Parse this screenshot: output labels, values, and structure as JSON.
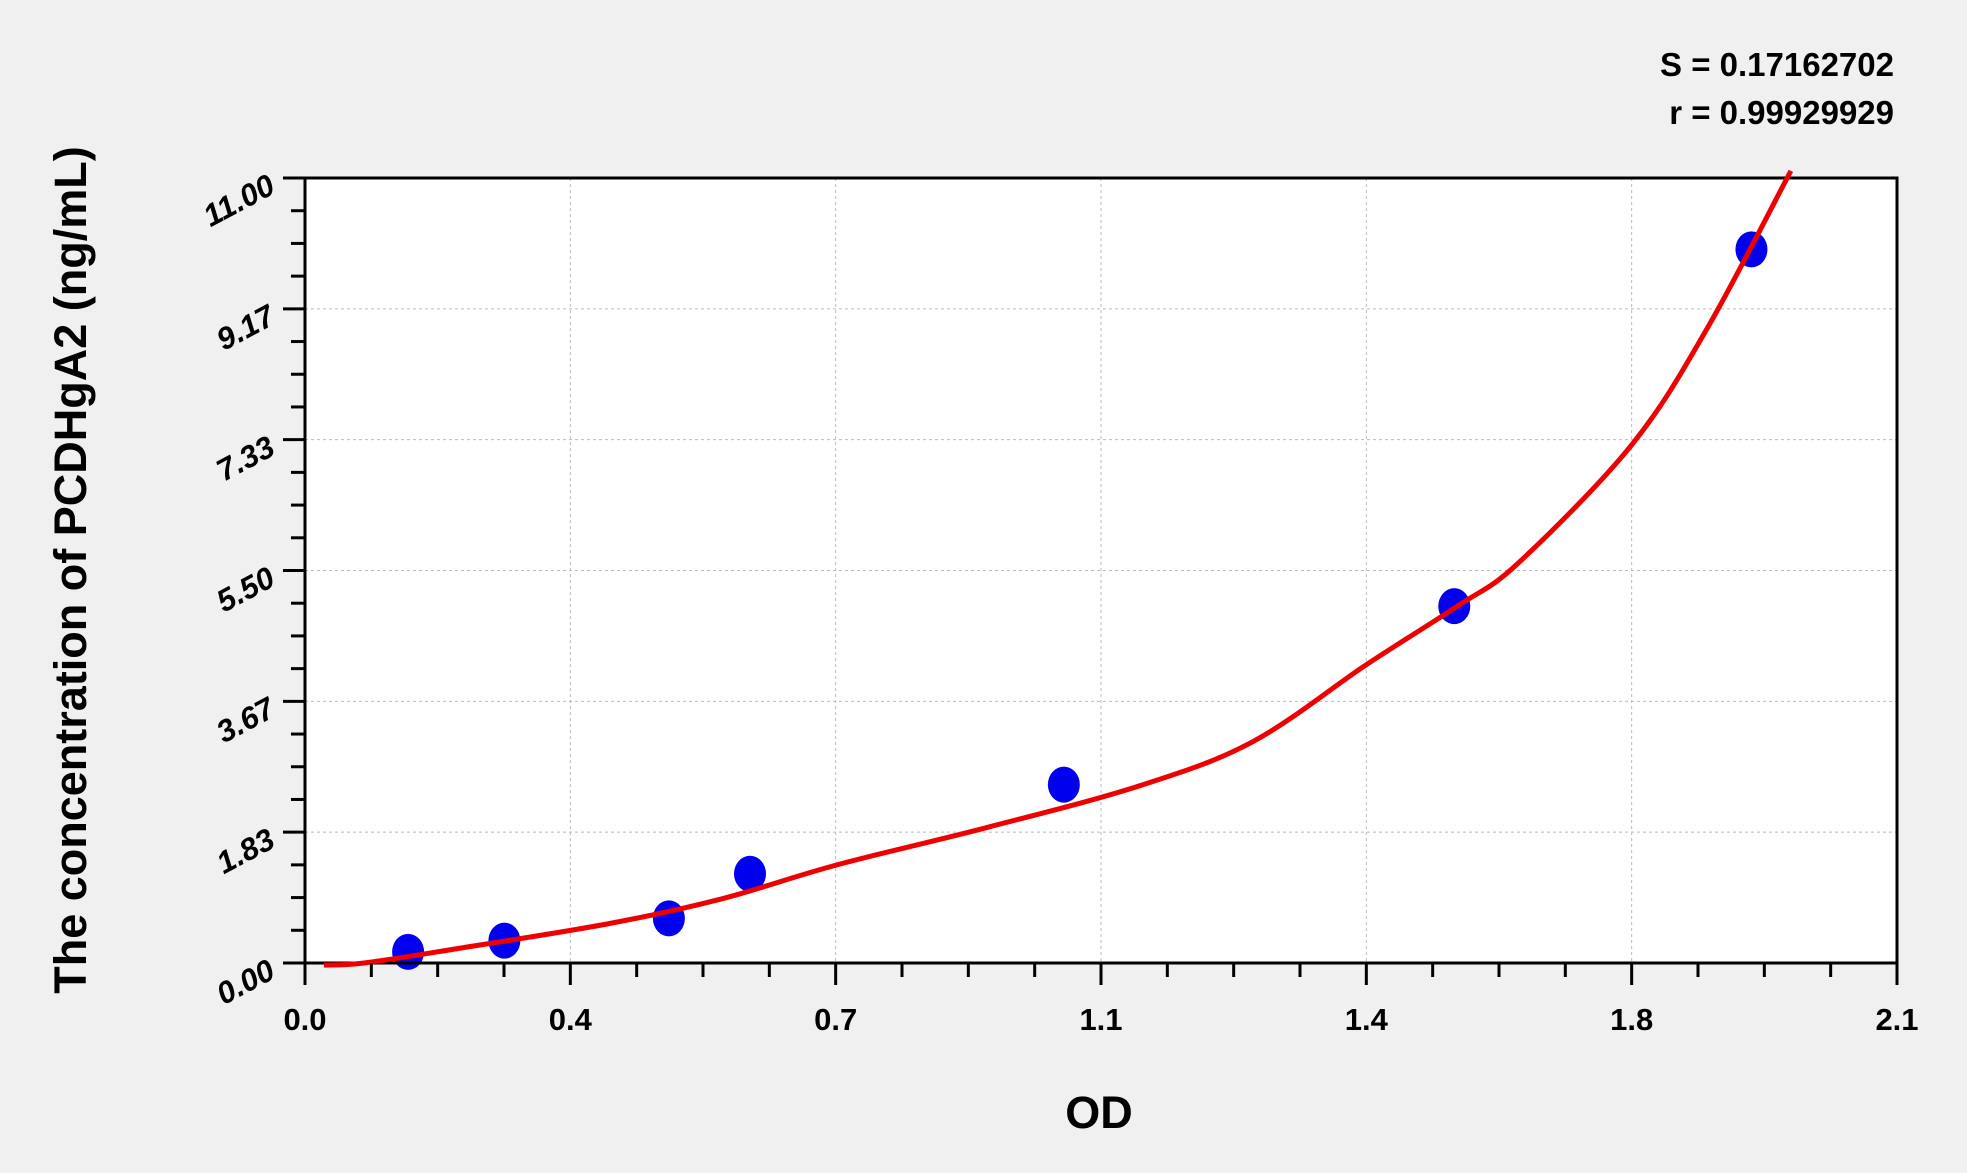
{
  "chart_data": {
    "type": "scatter",
    "xlabel": "OD",
    "ylabel": "The concentration of PCDHgA2 (ng/mL)",
    "xlim": [
      0.0,
      2.1
    ],
    "ylim": [
      0.0,
      11.0
    ],
    "x_ticks": [
      "0.0",
      "0.4",
      "0.7",
      "1.1",
      "1.4",
      "1.8",
      "2.1"
    ],
    "y_ticks": [
      "0.00",
      "1.83",
      "3.67",
      "5.50",
      "7.33",
      "9.17",
      "11.00"
    ],
    "grid": true,
    "stats": [
      "S = 0.17162702",
      "r = 0.99929929"
    ],
    "points": {
      "color": "#0000ee",
      "x": [
        0.136,
        0.263,
        0.48,
        0.587,
        1.001,
        1.516,
        1.908
      ],
      "y": [
        0.156,
        0.313,
        0.625,
        1.25,
        2.5,
        5.0,
        10.0
      ]
    },
    "fit_curve": {
      "color": "#ee0000",
      "x": [
        0.025,
        0.078,
        0.2,
        0.4,
        0.55,
        0.7,
        0.9,
        1.1,
        1.25,
        1.4,
        1.52,
        1.6,
        1.75,
        1.85,
        1.96
      ],
      "y": [
        -0.03,
        0.0,
        0.2,
        0.55,
        0.9,
        1.37,
        1.9,
        2.48,
        3.1,
        4.18,
        5.0,
        5.6,
        7.26,
        8.9,
        11.1
      ]
    }
  }
}
